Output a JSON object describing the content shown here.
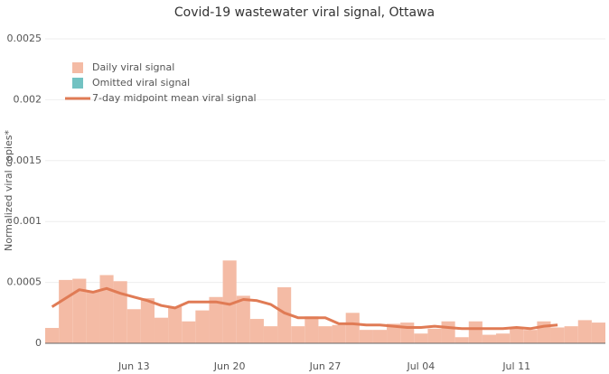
{
  "chart_data": {
    "type": "bar",
    "title": "Covid-19 wastewater viral signal, Ottawa",
    "y_label": "Normalized viral copies*",
    "categories": [
      null,
      null,
      null,
      null,
      null,
      null,
      "Jun 13",
      null,
      null,
      null,
      null,
      null,
      null,
      "Jun 20",
      null,
      null,
      null,
      null,
      null,
      null,
      "Jun 27",
      null,
      null,
      null,
      null,
      null,
      null,
      "Jul 04",
      null,
      null,
      null,
      null,
      null,
      null,
      "Jul 11",
      null,
      null,
      null,
      null,
      null,
      null
    ],
    "series": [
      {
        "name": "Daily viral signal",
        "type": "bar",
        "color": "#f4bba5",
        "values": [
          0.000126,
          0.00052,
          0.00053,
          0.00043,
          0.00056,
          0.00051,
          0.00028,
          0.00037,
          0.00021,
          0.0003,
          0.00018,
          0.00027,
          0.00038,
          0.00068,
          0.00039,
          0.0002,
          0.00014,
          0.00046,
          0.00014,
          0.00022,
          0.00014,
          0.00015,
          0.00025,
          0.00011,
          0.00011,
          0.00016,
          0.00017,
          8e-05,
          0.00012,
          0.00018,
          5e-05,
          0.00018,
          7e-05,
          8e-05,
          0.00012,
          0.00011,
          0.00018,
          0.00013,
          0.00014,
          0.00019,
          0.00017
        ]
      },
      {
        "name": "Omitted viral signal",
        "type": "bar",
        "color": "#72c2c2",
        "values": [
          null,
          null,
          null,
          null,
          null,
          null,
          null,
          null,
          null,
          null,
          null,
          null,
          null,
          null,
          null,
          null,
          null,
          null,
          null,
          null,
          null,
          null,
          null,
          null,
          null,
          null,
          null,
          null,
          null,
          null,
          null,
          null,
          null,
          null,
          null,
          null,
          null,
          null,
          null,
          null,
          null
        ]
      },
      {
        "name": "7-day midpoint mean viral signal",
        "type": "line",
        "color": "#e07b55",
        "values": [
          0.0003,
          0.00037,
          0.00044,
          0.00042,
          0.00045,
          0.00041,
          0.00038,
          0.00035,
          0.00031,
          0.00029,
          0.00034,
          0.00034,
          0.00034,
          0.00032,
          0.00036,
          0.00035,
          0.00032,
          0.00025,
          0.00021,
          0.00021,
          0.00021,
          0.00016,
          0.00016,
          0.00015,
          0.00015,
          0.00014,
          0.00013,
          0.00013,
          0.00014,
          0.00013,
          0.00012,
          0.00012,
          0.00012,
          0.00012,
          0.00013,
          0.00012,
          0.00014,
          0.00015,
          null,
          null,
          null
        ]
      }
    ],
    "ylim": [
      0,
      0.0025
    ],
    "yticks": [
      0,
      0.0005,
      0.001,
      0.0015,
      0.002,
      0.0025
    ],
    "grid": true,
    "legend": "top-left"
  }
}
